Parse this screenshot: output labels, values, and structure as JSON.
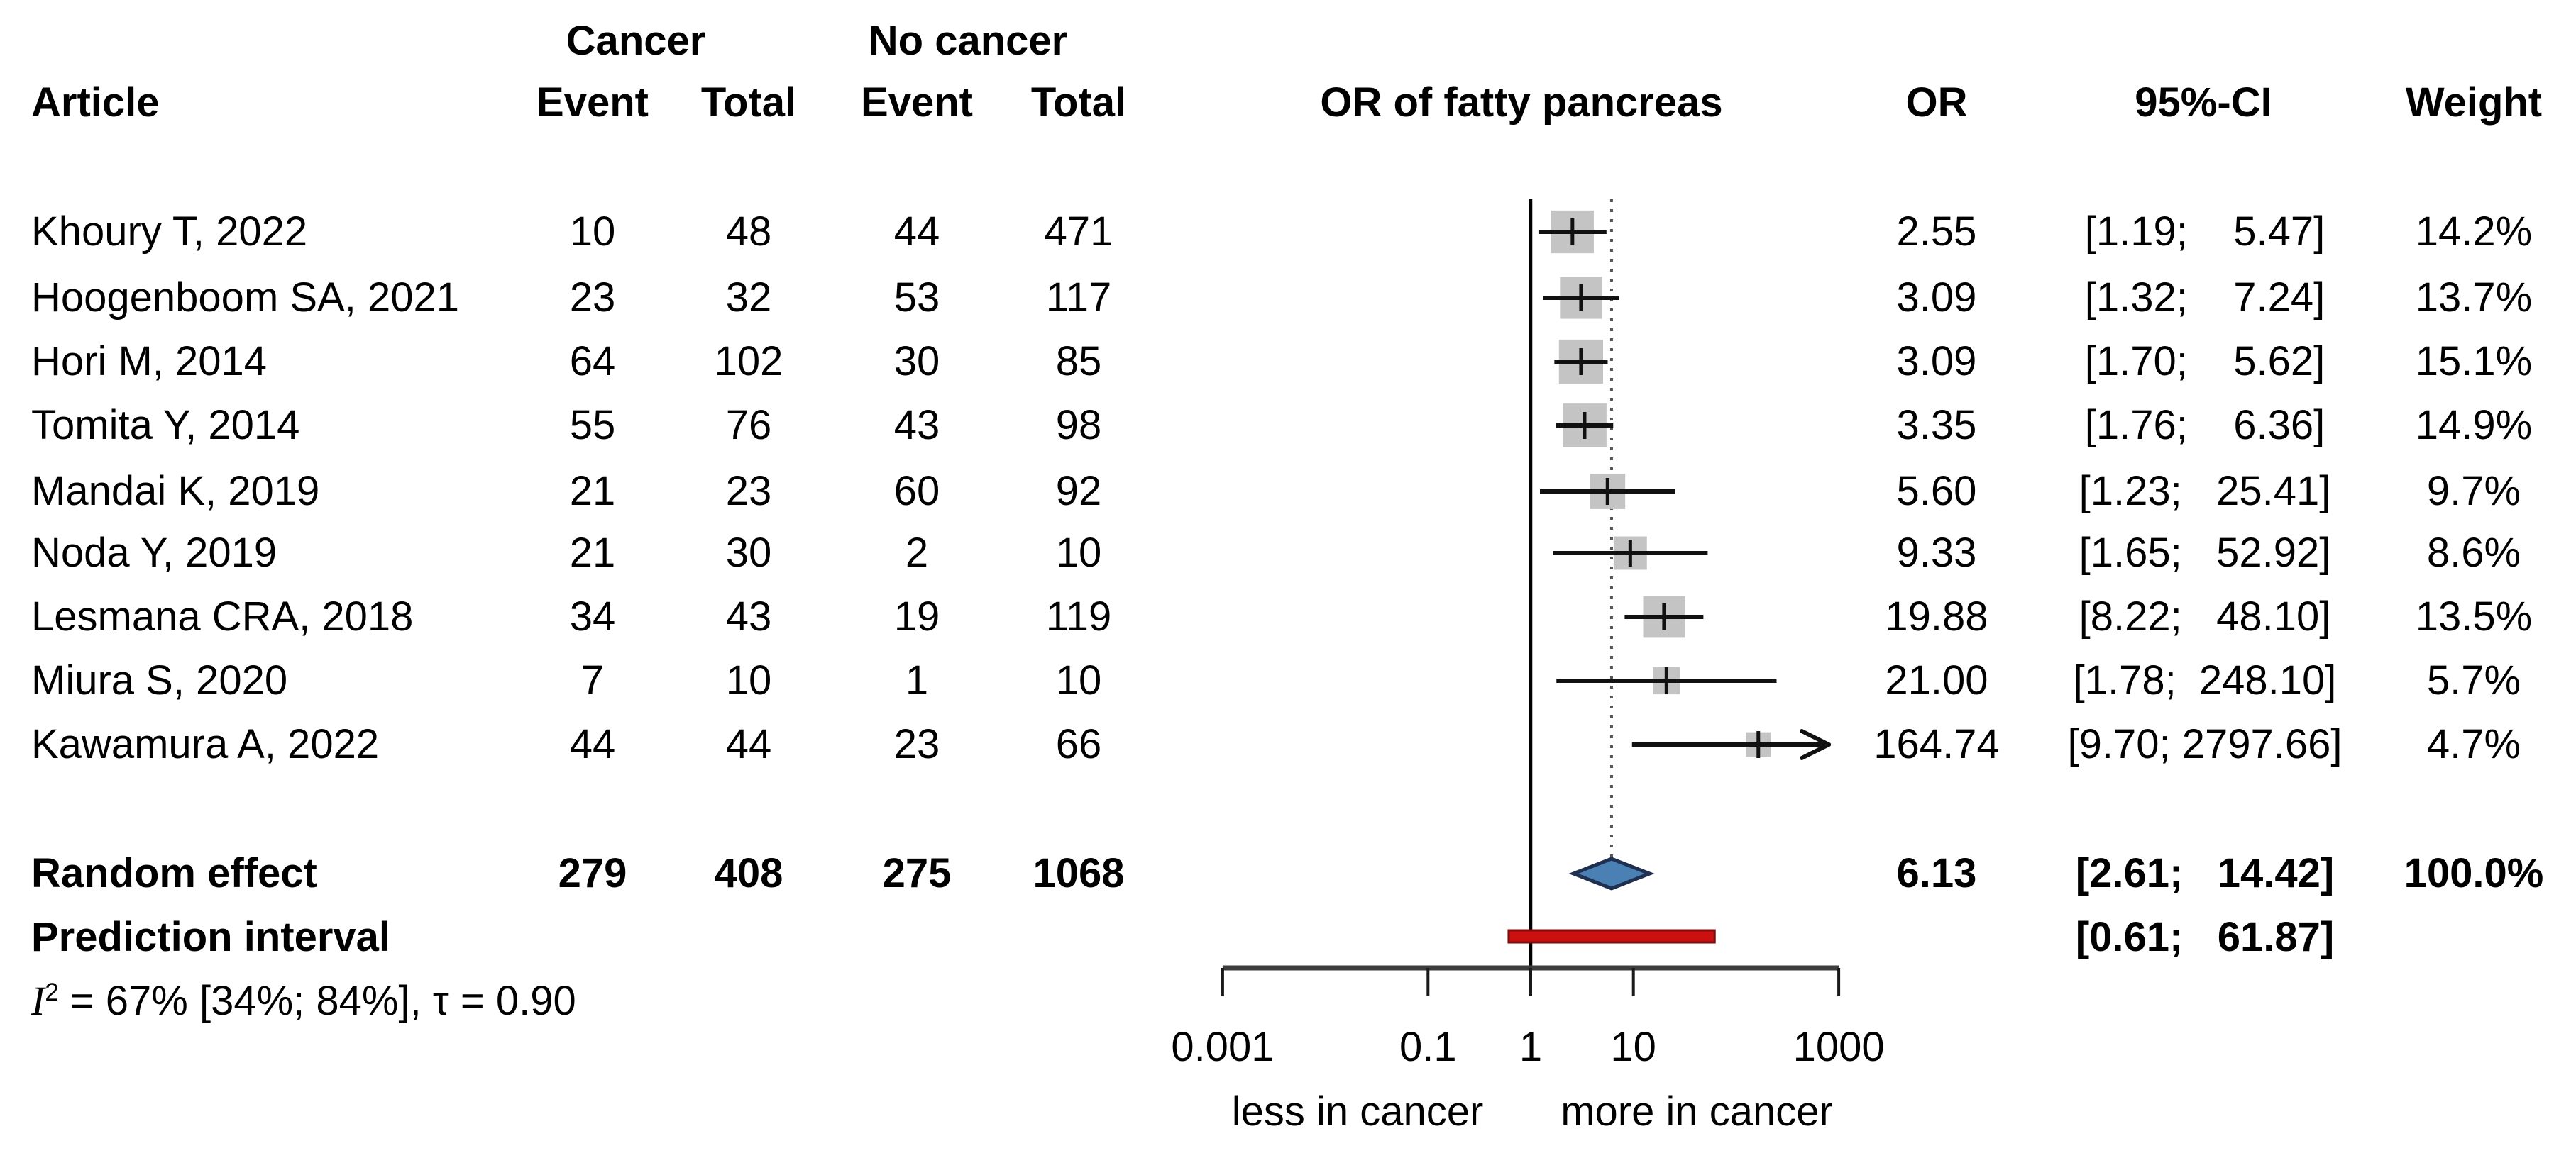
{
  "header": {
    "cancer_group": "Cancer",
    "no_cancer_group": "No cancer",
    "article": "Article",
    "event": "Event",
    "total": "Total",
    "plot_title": "OR of fatty pancreas",
    "or": "OR",
    "ci": "95%-CI",
    "weight": "Weight"
  },
  "summary": {
    "random_effect": {
      "label": "Random effect",
      "e1": "279",
      "t1": "408",
      "e2": "275",
      "t2": "1068",
      "or_label": "6.13",
      "ci_label": "[2.61;   14.42]",
      "weight_label": "100.0%"
    },
    "prediction_interval": {
      "label": "Prediction interval",
      "ci_label": "[0.61;   61.87]"
    },
    "heterogeneity": {
      "i": "I",
      "sup": "2",
      "rest": " = 67% [34%; 84%], τ = 0.90"
    }
  },
  "colors": {
    "square": "#c4c4c4",
    "ci_line": "#111111",
    "diamond_fill": "#4a80b4",
    "diamond_border": "#1f3050",
    "pi_bar_fill": "#cc1010",
    "pi_bar_border": "#7f0c0c",
    "ref_line": "#000000",
    "dotted_line": "#555555",
    "axis_line": "#3d3d3d",
    "tick": "#1a1a1a"
  },
  "chart_data": {
    "type": "forest",
    "title": "OR of fatty pancreas",
    "x_scale": "log10",
    "x_ticks": [
      {
        "v": 0.001,
        "label": "0.001"
      },
      {
        "v": 0.1,
        "label": "0.1"
      },
      {
        "v": 1,
        "label": "1"
      },
      {
        "v": 10,
        "label": "10"
      },
      {
        "v": 1000,
        "label": "1000"
      }
    ],
    "x_range": [
      0.001,
      1000
    ],
    "ref_line": 1,
    "pooled_dotted_line": 6.13,
    "direction_labels": {
      "left": "less in cancer",
      "right": "more in cancer"
    },
    "studies": [
      {
        "article": "Khoury T, 2022",
        "e1": "10",
        "t1": "48",
        "e2": "44",
        "t2": "471",
        "or": 2.55,
        "lo": 1.19,
        "hi": 5.47,
        "weight": 14.2,
        "or_label": "2.55",
        "ci_label": "[1.19;    5.47]",
        "weight_label": "14.2%"
      },
      {
        "article": "Hoogenboom SA, 2021",
        "e1": "23",
        "t1": "32",
        "e2": "53",
        "t2": "117",
        "or": 3.09,
        "lo": 1.32,
        "hi": 7.24,
        "weight": 13.7,
        "or_label": "3.09",
        "ci_label": "[1.32;    7.24]",
        "weight_label": "13.7%"
      },
      {
        "article": "Hori M, 2014",
        "e1": "64",
        "t1": "102",
        "e2": "30",
        "t2": "85",
        "or": 3.09,
        "lo": 1.7,
        "hi": 5.62,
        "weight": 15.1,
        "or_label": "3.09",
        "ci_label": "[1.70;    5.62]",
        "weight_label": "15.1%"
      },
      {
        "article": "Tomita Y, 2014",
        "e1": "55",
        "t1": "76",
        "e2": "43",
        "t2": "98",
        "or": 3.35,
        "lo": 1.76,
        "hi": 6.36,
        "weight": 14.9,
        "or_label": "3.35",
        "ci_label": "[1.76;    6.36]",
        "weight_label": "14.9%"
      },
      {
        "article": "Mandai K, 2019",
        "e1": "21",
        "t1": "23",
        "e2": "60",
        "t2": "92",
        "or": 5.6,
        "lo": 1.23,
        "hi": 25.41,
        "weight": 9.7,
        "or_label": "5.60",
        "ci_label": "[1.23;   25.41]",
        "weight_label": "9.7%"
      },
      {
        "article": "Noda Y, 2019",
        "e1": "21",
        "t1": "30",
        "e2": "2",
        "t2": "10",
        "or": 9.33,
        "lo": 1.65,
        "hi": 52.92,
        "weight": 8.6,
        "or_label": "9.33",
        "ci_label": "[1.65;   52.92]",
        "weight_label": "8.6%"
      },
      {
        "article": "Lesmana CRA, 2018",
        "e1": "34",
        "t1": "43",
        "e2": "19",
        "t2": "119",
        "or": 19.88,
        "lo": 8.22,
        "hi": 48.1,
        "weight": 13.5,
        "or_label": "19.88",
        "ci_label": "[8.22;   48.10]",
        "weight_label": "13.5%"
      },
      {
        "article": "Miura S, 2020",
        "e1": "7",
        "t1": "10",
        "e2": "1",
        "t2": "10",
        "or": 21.0,
        "lo": 1.78,
        "hi": 248.1,
        "weight": 5.7,
        "or_label": "21.00",
        "ci_label": "[1.78;  248.10]",
        "weight_label": "5.7%"
      },
      {
        "article": "Kawamura A, 2022",
        "e1": "44",
        "t1": "44",
        "e2": "23",
        "t2": "66",
        "or": 164.74,
        "lo": 9.7,
        "hi": 2797.66,
        "weight": 4.7,
        "or_label": "164.74",
        "ci_label": "[9.70; 2797.66]",
        "weight_label": "4.7%"
      }
    ],
    "random_effect": {
      "or": 6.13,
      "lo": 2.61,
      "hi": 14.42,
      "weight": 100.0
    },
    "prediction_interval": {
      "lo": 0.61,
      "hi": 61.87
    },
    "heterogeneity": "I2 = 67% [34%; 84%], τ = 0.90"
  }
}
